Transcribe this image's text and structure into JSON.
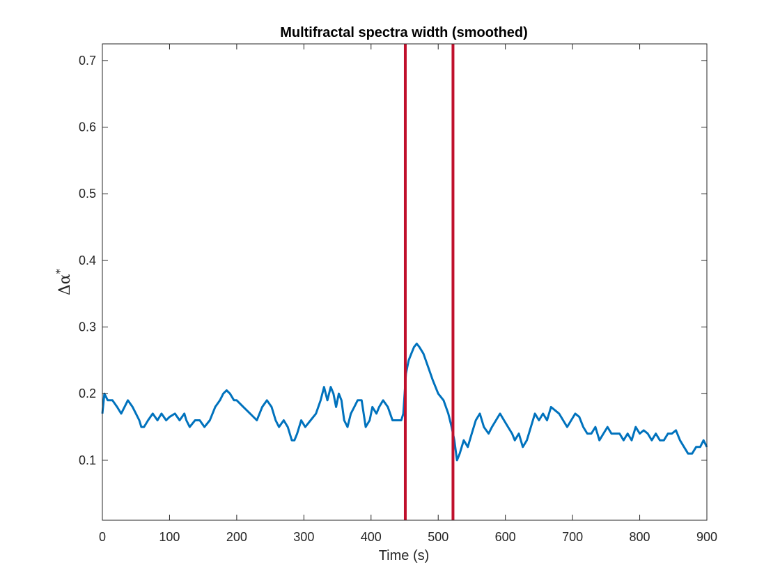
{
  "chart_data": {
    "type": "line",
    "title": "Multifractal spectra width (smoothed)",
    "xlabel": "Time (s)",
    "ylabel": {
      "base": "Δα",
      "sup": "*"
    },
    "xlim": [
      0,
      900
    ],
    "ylim": [
      0.01,
      0.725
    ],
    "xticks": [
      0,
      100,
      200,
      300,
      400,
      500,
      600,
      700,
      800,
      900
    ],
    "xtick_labels": [
      "0",
      "100",
      "200",
      "300",
      "400",
      "500",
      "600",
      "700",
      "800",
      "900"
    ],
    "yticks": [
      0.1,
      0.2,
      0.3,
      0.4,
      0.5,
      0.6,
      0.7
    ],
    "ytick_labels": [
      "0.1",
      "0.2",
      "0.3",
      "0.4",
      "0.5",
      "0.6",
      "0.7"
    ],
    "grid": false,
    "series": [
      {
        "color": "#0072BD",
        "x": [
          0,
          3,
          8,
          15,
          22,
          28,
          33,
          38,
          45,
          50,
          55,
          58,
          62,
          68,
          75,
          82,
          88,
          95,
          100,
          108,
          115,
          122,
          125,
          130,
          138,
          145,
          152,
          160,
          168,
          175,
          180,
          185,
          190,
          196,
          200,
          210,
          220,
          230,
          238,
          245,
          252,
          258,
          263,
          270,
          276,
          282,
          286,
          290,
          296,
          302,
          310,
          318,
          325,
          330,
          335,
          340,
          344,
          348,
          352,
          356,
          360,
          365,
          370,
          375,
          380,
          386,
          392,
          398,
          402,
          408,
          412,
          418,
          425,
          432,
          440,
          445,
          448,
          452,
          456,
          460,
          464,
          468,
          472,
          478,
          485,
          492,
          500,
          508,
          515,
          520,
          524,
          528,
          532,
          538,
          544,
          550,
          556,
          562,
          568,
          575,
          580,
          586,
          592,
          598,
          604,
          610,
          614,
          620,
          626,
          632,
          638,
          644,
          650,
          656,
          662,
          668,
          674,
          680,
          686,
          692,
          698,
          704,
          710,
          716,
          722,
          728,
          734,
          740,
          746,
          752,
          758,
          764,
          770,
          776,
          782,
          788,
          794,
          800,
          806,
          812,
          818,
          824,
          830,
          836,
          842,
          848,
          854,
          860,
          866,
          872,
          878,
          884,
          890,
          895,
          900
        ],
        "y": [
          0.17,
          0.2,
          0.19,
          0.19,
          0.18,
          0.17,
          0.18,
          0.19,
          0.18,
          0.17,
          0.16,
          0.15,
          0.15,
          0.16,
          0.17,
          0.16,
          0.17,
          0.16,
          0.165,
          0.17,
          0.16,
          0.17,
          0.16,
          0.15,
          0.16,
          0.16,
          0.15,
          0.16,
          0.18,
          0.19,
          0.2,
          0.205,
          0.2,
          0.19,
          0.19,
          0.18,
          0.17,
          0.16,
          0.18,
          0.19,
          0.18,
          0.16,
          0.15,
          0.16,
          0.15,
          0.13,
          0.13,
          0.14,
          0.16,
          0.15,
          0.16,
          0.17,
          0.19,
          0.21,
          0.19,
          0.21,
          0.2,
          0.18,
          0.2,
          0.19,
          0.16,
          0.15,
          0.17,
          0.18,
          0.19,
          0.19,
          0.15,
          0.16,
          0.18,
          0.17,
          0.18,
          0.19,
          0.18,
          0.16,
          0.16,
          0.16,
          0.17,
          0.23,
          0.25,
          0.26,
          0.27,
          0.275,
          0.27,
          0.26,
          0.24,
          0.22,
          0.2,
          0.19,
          0.17,
          0.15,
          0.13,
          0.1,
          0.11,
          0.13,
          0.12,
          0.14,
          0.16,
          0.17,
          0.15,
          0.14,
          0.15,
          0.16,
          0.17,
          0.16,
          0.15,
          0.14,
          0.13,
          0.14,
          0.12,
          0.13,
          0.15,
          0.17,
          0.16,
          0.17,
          0.16,
          0.18,
          0.175,
          0.17,
          0.16,
          0.15,
          0.16,
          0.17,
          0.165,
          0.15,
          0.14,
          0.14,
          0.15,
          0.13,
          0.14,
          0.15,
          0.14,
          0.14,
          0.14,
          0.13,
          0.14,
          0.13,
          0.15,
          0.14,
          0.145,
          0.14,
          0.13,
          0.14,
          0.13,
          0.13,
          0.14,
          0.14,
          0.145,
          0.13,
          0.12,
          0.11,
          0.11,
          0.12,
          0.12,
          0.13,
          0.12
        ]
      }
    ],
    "vertical_lines": [
      {
        "x": 451,
        "color": "#C0102C"
      },
      {
        "x": 522,
        "color": "#C0102C"
      }
    ]
  }
}
